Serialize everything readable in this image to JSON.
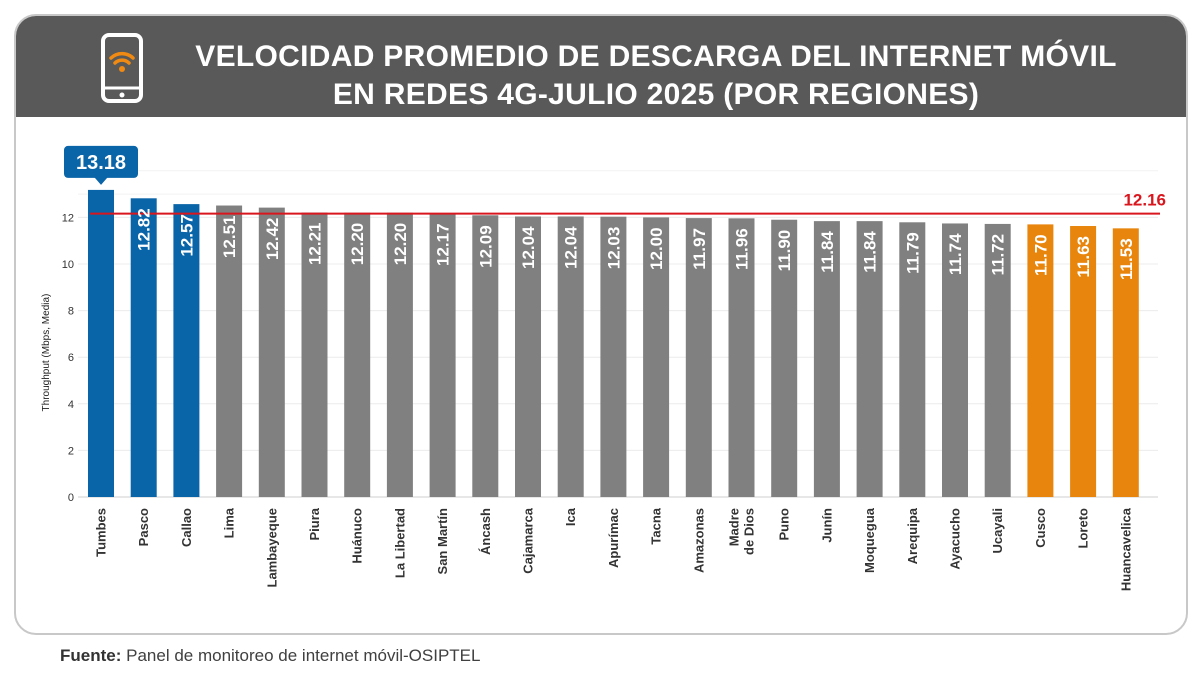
{
  "title_line1": "VELOCIDAD PROMEDIO DE DESCARGA DEL INTERNET MÓVIL",
  "title_line2": "EN REDES 4G-JULIO 2025 (POR REGIONES)",
  "source_label": "Fuente:",
  "source_text": "Panel de monitoreo de internet móvil-OSIPTEL",
  "icons": {
    "header": "smartphone-wifi-icon"
  },
  "colors": {
    "header_bg": "#595959",
    "top": "#0a64a8",
    "middle": "#808080",
    "bottom": "#e8850c",
    "reference": "#d9161e"
  },
  "chart_data": {
    "type": "bar",
    "title": "VELOCIDAD PROMEDIO DE DESCARGA DEL INTERNET MÓVIL EN REDES 4G-JULIO 2025 (POR REGIONES)",
    "ylabel": "Throughput (Mbps, Media)",
    "xlabel": "",
    "ylim": [
      0,
      14
    ],
    "yticks": [
      0,
      2,
      4,
      6,
      8,
      10,
      12
    ],
    "grid": true,
    "reference_line": {
      "value": 12.16,
      "label": "12.16"
    },
    "categories": [
      "Tumbes",
      "Pasco",
      "Callao",
      "Lima",
      "Lambayeque",
      "Piura",
      "Huánuco",
      "La Libertad",
      "San Martín",
      "Áncash",
      "Cajamarca",
      "Ica",
      "Apurímac",
      "Tacna",
      "Amazonas",
      "Madre de Dios",
      "Puno",
      "Junín",
      "Moquegua",
      "Arequipa",
      "Ayacucho",
      "Ucayali",
      "Cusco",
      "Loreto",
      "Huancavelica"
    ],
    "values": [
      13.18,
      12.82,
      12.57,
      12.51,
      12.42,
      12.21,
      12.2,
      12.2,
      12.17,
      12.09,
      12.04,
      12.04,
      12.03,
      12.0,
      11.97,
      11.96,
      11.9,
      11.84,
      11.84,
      11.79,
      11.74,
      11.72,
      11.7,
      11.63,
      11.53
    ],
    "labels": [
      "13.18",
      "12.82",
      "12.57",
      "12.51",
      "12.42",
      "12.21",
      "12.20",
      "12.20",
      "12.17",
      "12.09",
      "12.04",
      "12.04",
      "12.03",
      "12.00",
      "11.97",
      "11.96",
      "11.90",
      "11.84",
      "11.84",
      "11.79",
      "11.74",
      "11.72",
      "11.70",
      "11.63",
      "11.53"
    ],
    "groups": [
      "top",
      "top",
      "top",
      "middle",
      "middle",
      "middle",
      "middle",
      "middle",
      "middle",
      "middle",
      "middle",
      "middle",
      "middle",
      "middle",
      "middle",
      "middle",
      "middle",
      "middle",
      "middle",
      "middle",
      "middle",
      "middle",
      "bottom",
      "bottom",
      "bottom"
    ]
  }
}
